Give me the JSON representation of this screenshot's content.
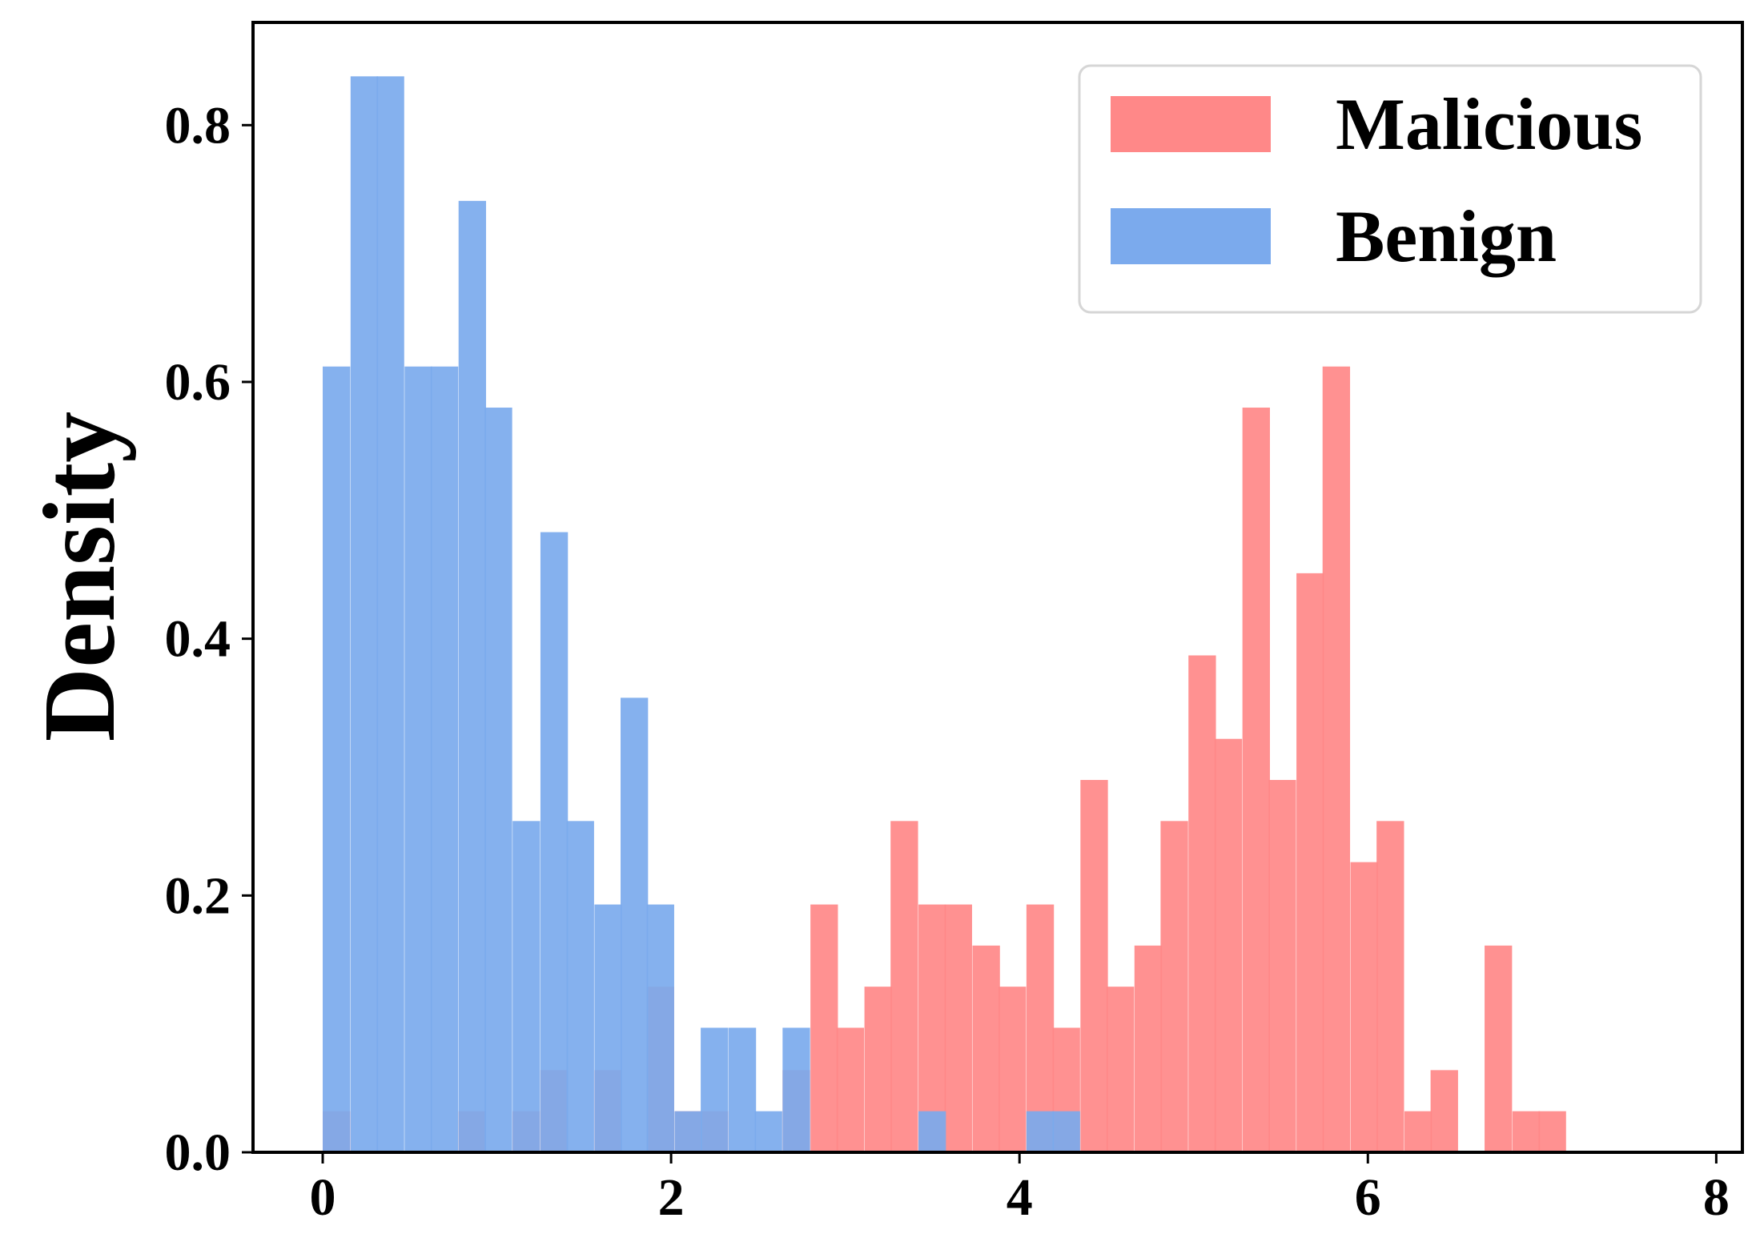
{
  "chart_data": {
    "type": "bar",
    "subtype": "histogram-overlay",
    "title": "",
    "xlabel": "",
    "ylabel": "Density",
    "xlim": [
      -0.4,
      8.15
    ],
    "ylim": [
      0,
      0.88
    ],
    "xticks": [
      0,
      2,
      4,
      6,
      8
    ],
    "yticks": [
      0.0,
      0.2,
      0.4,
      0.6,
      0.8
    ],
    "xtick_labels": [
      "0",
      "2",
      "4",
      "6",
      "8"
    ],
    "ytick_labels": [
      "0.0",
      "0.2",
      "0.4",
      "0.6",
      "0.8"
    ],
    "grid": false,
    "legend_position": "top-right",
    "bin_width": 0.155,
    "series": [
      {
        "name": "Malicious",
        "color": "#ff8888",
        "bins": [
          [
            0.0,
            0.032
          ],
          [
            0.78,
            0.032
          ],
          [
            1.09,
            0.032
          ],
          [
            1.25,
            0.064
          ],
          [
            1.56,
            0.064
          ],
          [
            1.86,
            0.129
          ],
          [
            2.02,
            0.032
          ],
          [
            2.17,
            0.032
          ],
          [
            2.64,
            0.064
          ],
          [
            2.8,
            0.193
          ],
          [
            2.95,
            0.097
          ],
          [
            3.11,
            0.129
          ],
          [
            3.26,
            0.258
          ],
          [
            3.42,
            0.193
          ],
          [
            3.57,
            0.193
          ],
          [
            3.73,
            0.161
          ],
          [
            3.88,
            0.129
          ],
          [
            4.04,
            0.193
          ],
          [
            4.19,
            0.097
          ],
          [
            4.35,
            0.29
          ],
          [
            4.5,
            0.129
          ],
          [
            4.66,
            0.161
          ],
          [
            4.81,
            0.258
          ],
          [
            4.97,
            0.387
          ],
          [
            5.12,
            0.322
          ],
          [
            5.28,
            0.58
          ],
          [
            5.43,
            0.29
          ],
          [
            5.59,
            0.451
          ],
          [
            5.74,
            0.612
          ],
          [
            5.9,
            0.226
          ],
          [
            6.05,
            0.258
          ],
          [
            6.21,
            0.032
          ],
          [
            6.36,
            0.064
          ],
          [
            6.67,
            0.161
          ],
          [
            6.83,
            0.032
          ],
          [
            6.98,
            0.032
          ]
        ]
      },
      {
        "name": "Benign",
        "color": "#7baaed",
        "bins": [
          [
            0.0,
            0.612
          ],
          [
            0.16,
            0.838
          ],
          [
            0.31,
            0.838
          ],
          [
            0.47,
            0.612
          ],
          [
            0.62,
            0.612
          ],
          [
            0.78,
            0.741
          ],
          [
            0.93,
            0.58
          ],
          [
            1.09,
            0.258
          ],
          [
            1.25,
            0.483
          ],
          [
            1.4,
            0.258
          ],
          [
            1.56,
            0.193
          ],
          [
            1.71,
            0.354
          ],
          [
            1.86,
            0.193
          ],
          [
            2.02,
            0.032
          ],
          [
            2.17,
            0.097
          ],
          [
            2.33,
            0.097
          ],
          [
            2.48,
            0.032
          ],
          [
            2.64,
            0.097
          ],
          [
            3.42,
            0.032
          ],
          [
            4.04,
            0.032
          ],
          [
            4.19,
            0.032
          ]
        ]
      }
    ]
  }
}
